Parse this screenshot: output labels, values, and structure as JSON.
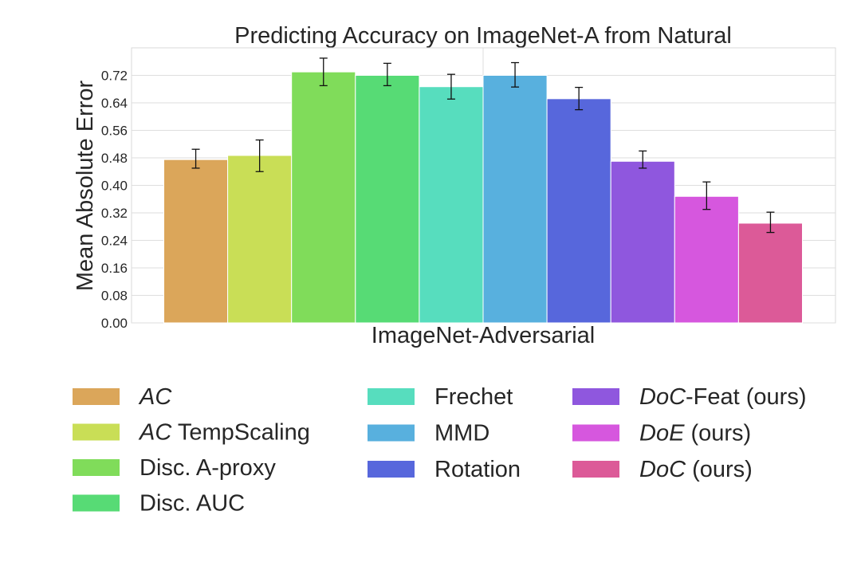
{
  "chart_data": {
    "type": "bar",
    "title": "Predicting Accuracy on ImageNet-A from Natural",
    "xlabel": "ImageNet-Adversarial",
    "ylabel": "Mean Absolute Error",
    "ylim": [
      0,
      0.8
    ],
    "yticks": [
      "0.00",
      "0.08",
      "0.16",
      "0.24",
      "0.32",
      "0.40",
      "0.48",
      "0.56",
      "0.64",
      "0.72"
    ],
    "grid": true,
    "legend_position": "bottom",
    "categories": [
      "ImageNet-Adversarial"
    ],
    "series": [
      {
        "name": "AC",
        "value": 0.475,
        "err_low": 0.45,
        "err_high": 0.505,
        "color": "#dba65a",
        "legend": [
          {
            "text": "AC",
            "italic": true
          }
        ]
      },
      {
        "name": "AC TempScaling",
        "value": 0.487,
        "err_low": 0.44,
        "err_high": 0.532,
        "color": "#c9de56",
        "legend": [
          {
            "text": "AC",
            "italic": true
          },
          {
            "text": " TempScaling",
            "italic": false
          }
        ]
      },
      {
        "name": "Disc. A-proxy",
        "value": 0.73,
        "err_low": 0.69,
        "err_high": 0.77,
        "color": "#80dc5a",
        "legend": [
          {
            "text": "Disc. A-proxy",
            "italic": false
          }
        ]
      },
      {
        "name": "Disc. AUC",
        "value": 0.72,
        "err_low": 0.69,
        "err_high": 0.755,
        "color": "#57db75",
        "legend": [
          {
            "text": "Disc. AUC",
            "italic": false
          }
        ]
      },
      {
        "name": "Frechet",
        "value": 0.687,
        "err_low": 0.651,
        "err_high": 0.723,
        "color": "#57ddbe",
        "legend": [
          {
            "text": "Frechet",
            "italic": false
          }
        ]
      },
      {
        "name": "MMD",
        "value": 0.72,
        "err_low": 0.686,
        "err_high": 0.757,
        "color": "#58b0de",
        "legend": [
          {
            "text": "MMD",
            "italic": false
          }
        ]
      },
      {
        "name": "Rotation",
        "value": 0.652,
        "err_low": 0.62,
        "err_high": 0.685,
        "color": "#5767dc",
        "legend": [
          {
            "text": "Rotation",
            "italic": false
          }
        ]
      },
      {
        "name": "DoC-Feat (ours)",
        "value": 0.47,
        "err_low": 0.45,
        "err_high": 0.5,
        "color": "#8f57de",
        "legend": [
          {
            "text": "DoC",
            "italic": true
          },
          {
            "text": "-Feat (ours)",
            "italic": false
          }
        ]
      },
      {
        "name": "DoE (ours)",
        "value": 0.368,
        "err_low": 0.33,
        "err_high": 0.41,
        "color": "#d657de",
        "legend": [
          {
            "text": "DoE",
            "italic": true
          },
          {
            "text": " (ours)",
            "italic": false
          }
        ]
      },
      {
        "name": "DoC (ours)",
        "value": 0.29,
        "err_low": 0.263,
        "err_high": 0.322,
        "color": "#dc5a98",
        "legend": [
          {
            "text": "DoC",
            "italic": true
          },
          {
            "text": " (ours)",
            "italic": false
          }
        ]
      }
    ]
  }
}
